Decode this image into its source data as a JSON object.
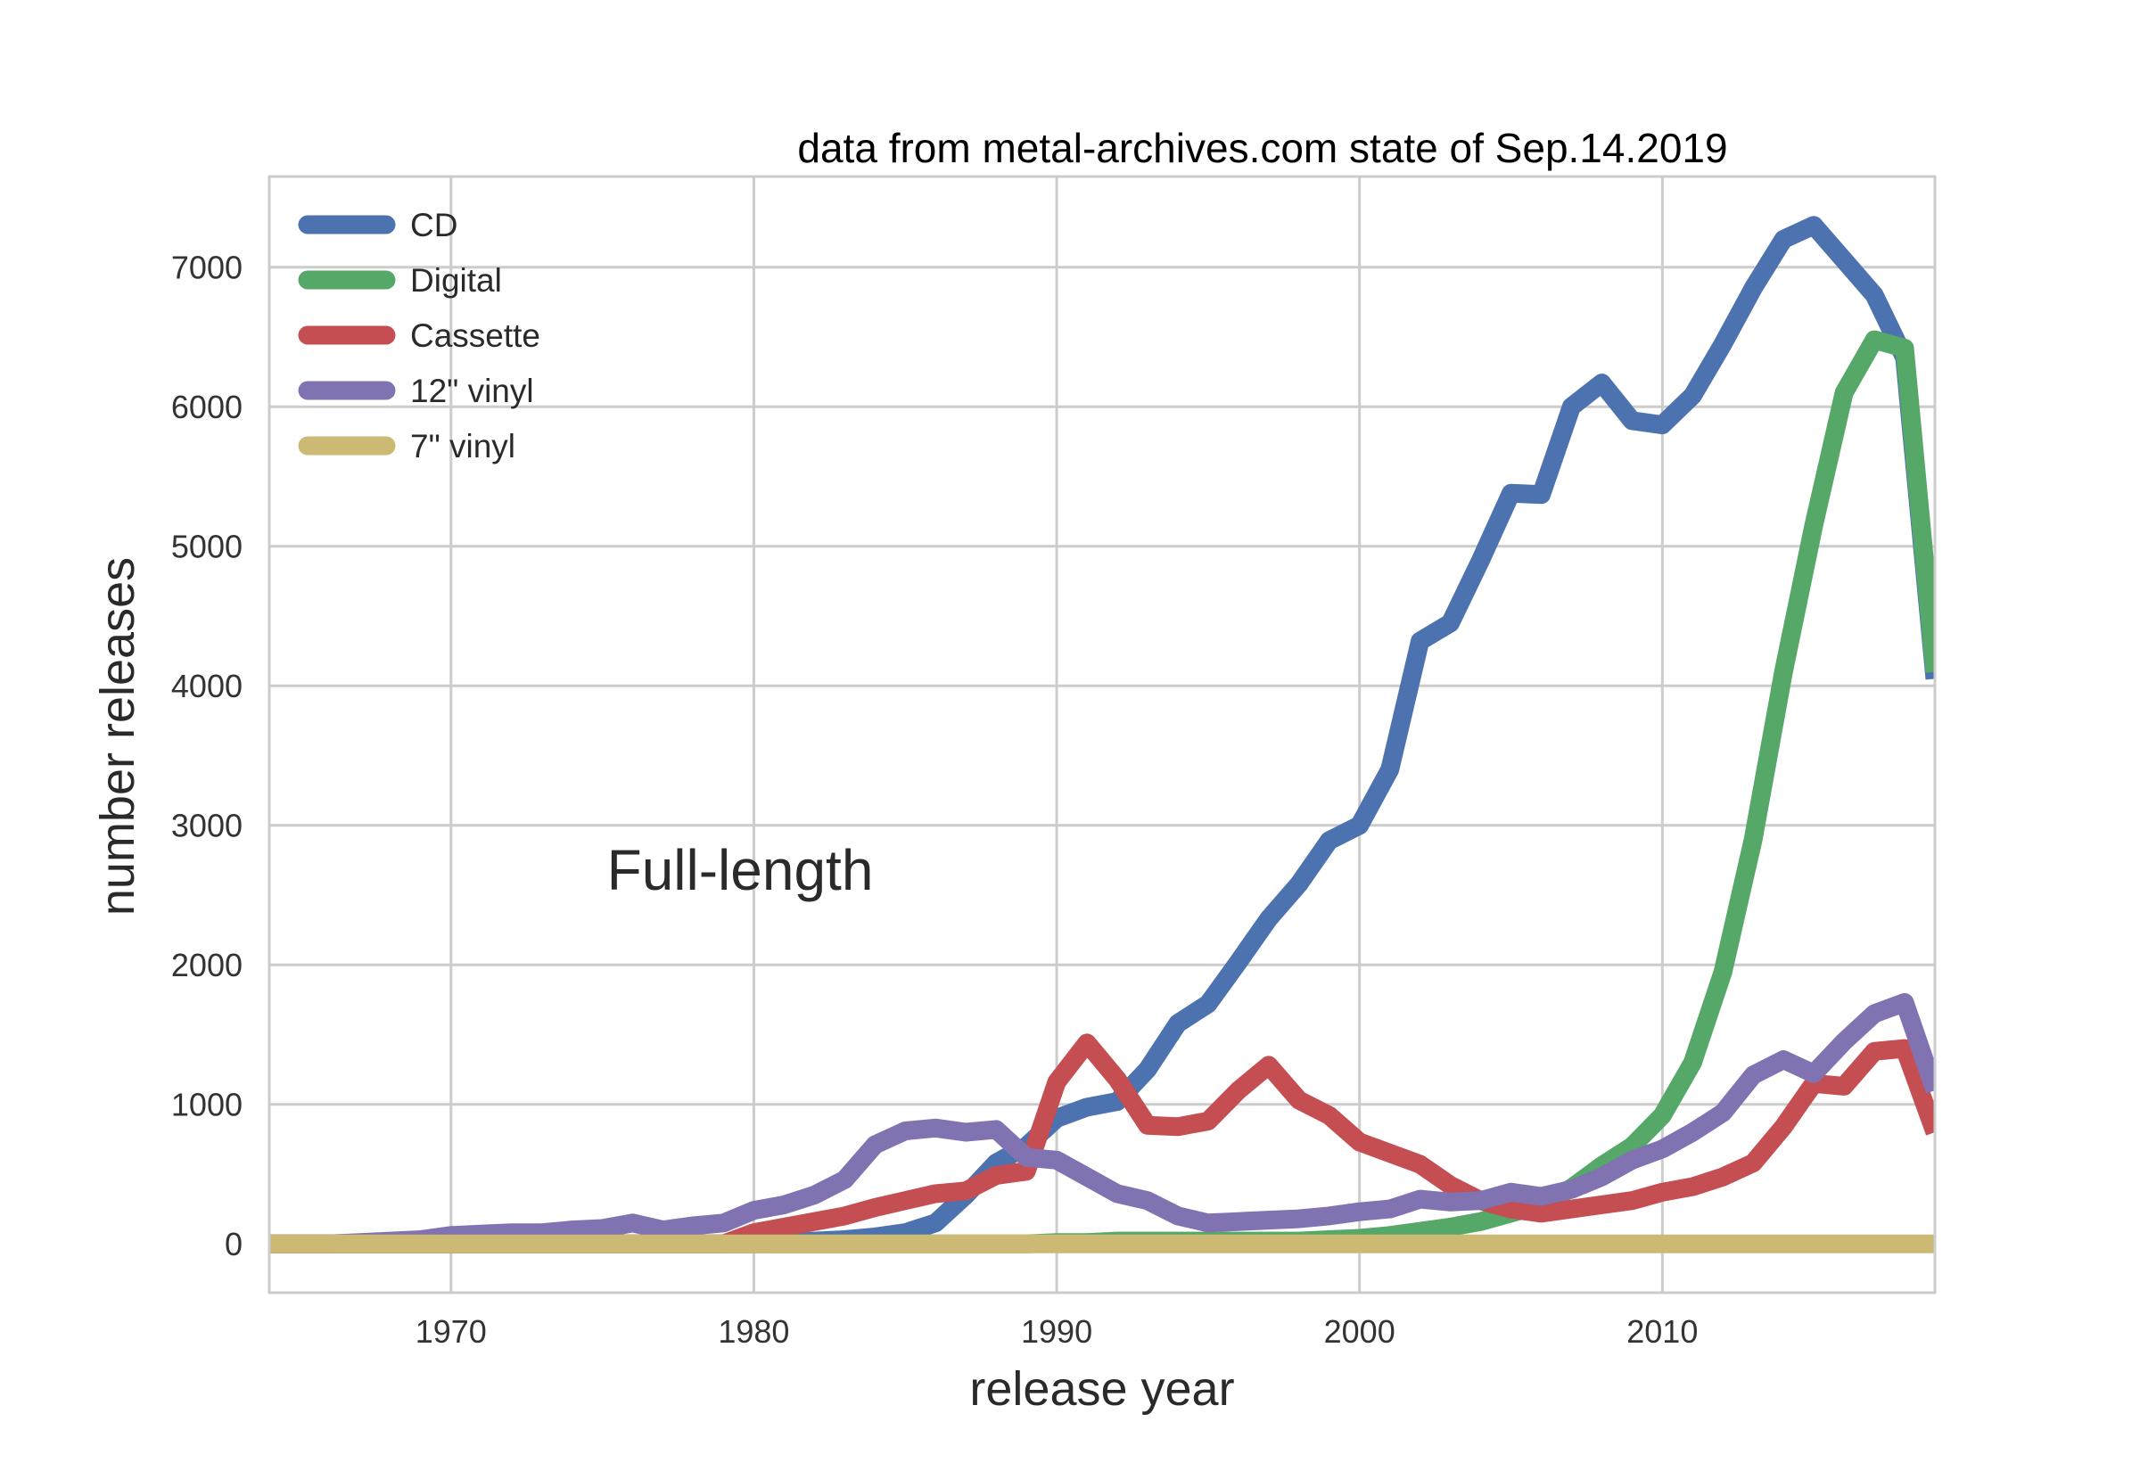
{
  "chart_data": {
    "type": "line",
    "title": "data from metal-archives.com state of Sep.14.2019",
    "xlabel": "release year",
    "ylabel": "number releases",
    "annotation": "Full-length",
    "xlim": [
      1964,
      2019
    ],
    "ylim": [
      -350,
      7650
    ],
    "xticks": [
      1970,
      1980,
      1990,
      2000,
      2010
    ],
    "yticks": [
      0,
      1000,
      2000,
      3000,
      4000,
      5000,
      6000,
      7000
    ],
    "grid": true,
    "legend_position": "upper-left",
    "x": [
      1964,
      1965,
      1966,
      1967,
      1968,
      1969,
      1970,
      1971,
      1972,
      1973,
      1974,
      1975,
      1976,
      1977,
      1978,
      1979,
      1980,
      1981,
      1982,
      1983,
      1984,
      1985,
      1986,
      1987,
      1988,
      1989,
      1990,
      1991,
      1992,
      1993,
      1994,
      1995,
      1996,
      1997,
      1998,
      1999,
      2000,
      2001,
      2002,
      2003,
      2004,
      2005,
      2006,
      2007,
      2008,
      2009,
      2010,
      2011,
      2012,
      2013,
      2014,
      2015,
      2016,
      2017,
      2018,
      2019
    ],
    "series": [
      {
        "name": "CD",
        "color": "#4C72B0",
        "values": [
          0,
          0,
          0,
          0,
          0,
          0,
          0,
          0,
          0,
          0,
          0,
          0,
          0,
          0,
          0,
          0,
          0,
          10,
          20,
          30,
          50,
          80,
          150,
          350,
          580,
          700,
          900,
          980,
          1020,
          1250,
          1580,
          1720,
          2020,
          2330,
          2580,
          2890,
          3000,
          3400,
          4320,
          4450,
          4900,
          5380,
          5370,
          6000,
          6170,
          5900,
          5870,
          6080,
          6450,
          6850,
          7200,
          7300,
          7050,
          6800,
          6350,
          4050
        ]
      },
      {
        "name": "Digital",
        "color": "#55A868",
        "values": [
          0,
          0,
          0,
          0,
          0,
          0,
          0,
          0,
          0,
          0,
          0,
          0,
          0,
          0,
          0,
          0,
          0,
          0,
          0,
          0,
          0,
          0,
          0,
          0,
          0,
          0,
          10,
          10,
          20,
          20,
          20,
          20,
          20,
          20,
          20,
          30,
          40,
          60,
          90,
          120,
          160,
          220,
          280,
          400,
          560,
          700,
          920,
          1300,
          1950,
          2900,
          4100,
          5150,
          6100,
          6480,
          6420,
          4100
        ]
      },
      {
        "name": "Cassette",
        "color": "#C44E52",
        "values": [
          0,
          0,
          0,
          0,
          0,
          0,
          0,
          0,
          0,
          0,
          0,
          0,
          0,
          0,
          0,
          0,
          80,
          120,
          160,
          200,
          260,
          310,
          360,
          380,
          490,
          520,
          1160,
          1440,
          1180,
          850,
          840,
          880,
          1100,
          1280,
          1030,
          920,
          730,
          650,
          570,
          420,
          310,
          250,
          220,
          250,
          280,
          310,
          370,
          410,
          480,
          580,
          840,
          1150,
          1130,
          1380,
          1400,
          800
        ]
      },
      {
        "name": "12\" vinyl",
        "color": "#8172B2",
        "values": [
          0,
          0,
          0,
          10,
          20,
          30,
          60,
          70,
          80,
          80,
          100,
          110,
          150,
          100,
          130,
          150,
          240,
          280,
          350,
          460,
          710,
          810,
          830,
          800,
          820,
          620,
          600,
          480,
          360,
          310,
          200,
          150,
          160,
          170,
          180,
          200,
          230,
          250,
          320,
          300,
          310,
          370,
          340,
          390,
          480,
          600,
          680,
          800,
          940,
          1210,
          1320,
          1220,
          1450,
          1650,
          1730,
          1100
        ]
      },
      {
        "name": "7\" vinyl",
        "color": "#CCB974",
        "values": [
          0,
          0,
          0,
          0,
          0,
          0,
          0,
          0,
          0,
          0,
          0,
          0,
          0,
          0,
          0,
          0,
          0,
          0,
          0,
          0,
          0,
          0,
          0,
          0,
          0,
          0,
          0,
          0,
          0,
          0,
          0,
          0,
          0,
          0,
          0,
          0,
          0,
          0,
          0,
          0,
          0,
          0,
          0,
          0,
          0,
          0,
          0,
          0,
          0,
          0,
          0,
          0,
          0,
          0,
          0,
          0
        ]
      }
    ]
  }
}
